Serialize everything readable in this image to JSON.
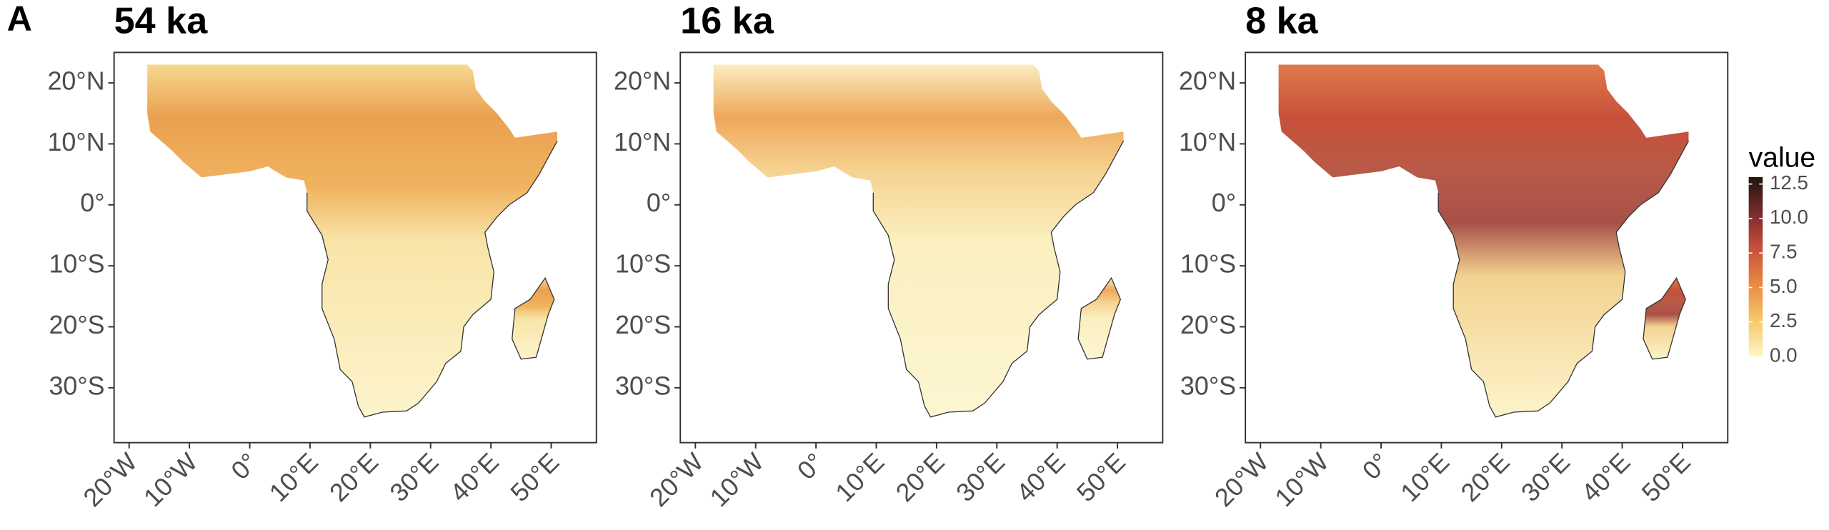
{
  "figure_label": "A",
  "panels": [
    {
      "title": "54 ka"
    },
    {
      "title": "16 ka"
    },
    {
      "title": "8 ka"
    }
  ],
  "yticks": [
    {
      "value": 20,
      "label": "20°N"
    },
    {
      "value": 10,
      "label": "10°N"
    },
    {
      "value": 0,
      "label": "0°"
    },
    {
      "value": -10,
      "label": "10°S"
    },
    {
      "value": -20,
      "label": "20°S"
    },
    {
      "value": -30,
      "label": "30°S"
    }
  ],
  "xticks": [
    {
      "value": -20,
      "label": "20°W"
    },
    {
      "value": -10,
      "label": "10°W"
    },
    {
      "value": 0,
      "label": "0°"
    },
    {
      "value": 10,
      "label": "10°E"
    },
    {
      "value": 20,
      "label": "20°E"
    },
    {
      "value": 30,
      "label": "30°E"
    },
    {
      "value": 40,
      "label": "40°E"
    },
    {
      "value": 50,
      "label": "50°E"
    }
  ],
  "legend": {
    "title": "value",
    "ticks": [
      12.5,
      {
        "value": 10,
        "label": "10.0"
      },
      7.5,
      {
        "value": 5,
        "label": "5.0"
      },
      2.5,
      {
        "value": 0,
        "label": "0.0"
      }
    ]
  }
}
